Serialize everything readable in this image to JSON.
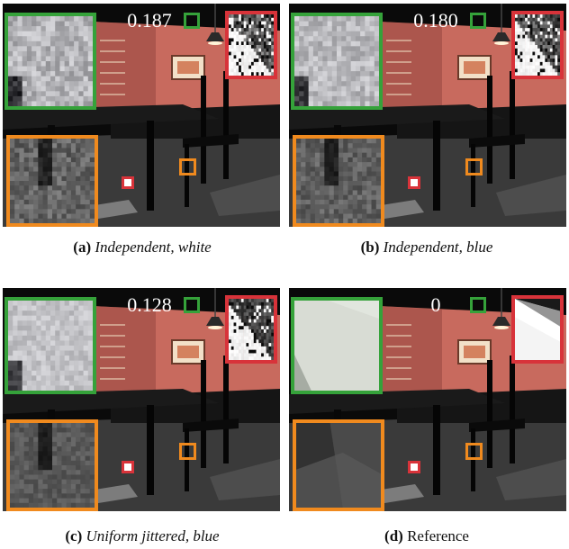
{
  "figure": {
    "panels": [
      {
        "id": "a",
        "metric": "0.187",
        "label": "(a)",
        "caption": "Independent, white",
        "caption_italic": true,
        "noise": "white"
      },
      {
        "id": "b",
        "metric": "0.180",
        "label": "(b)",
        "caption": "Independent, blue",
        "caption_italic": true,
        "noise": "blue"
      },
      {
        "id": "c",
        "metric": "0.128",
        "label": "(c)",
        "caption": "Uniform jittered, blue",
        "caption_italic": true,
        "noise": "jittered"
      },
      {
        "id": "d",
        "metric": "0",
        "label": "(d)",
        "caption": "Reference",
        "caption_italic": false,
        "noise": "none"
      }
    ],
    "colors": {
      "inset_green": "#35a23a",
      "inset_red": "#d8333a",
      "inset_orange": "#f08a1e",
      "wall": "#c86a5e",
      "floor": "#3a3a3a"
    }
  }
}
